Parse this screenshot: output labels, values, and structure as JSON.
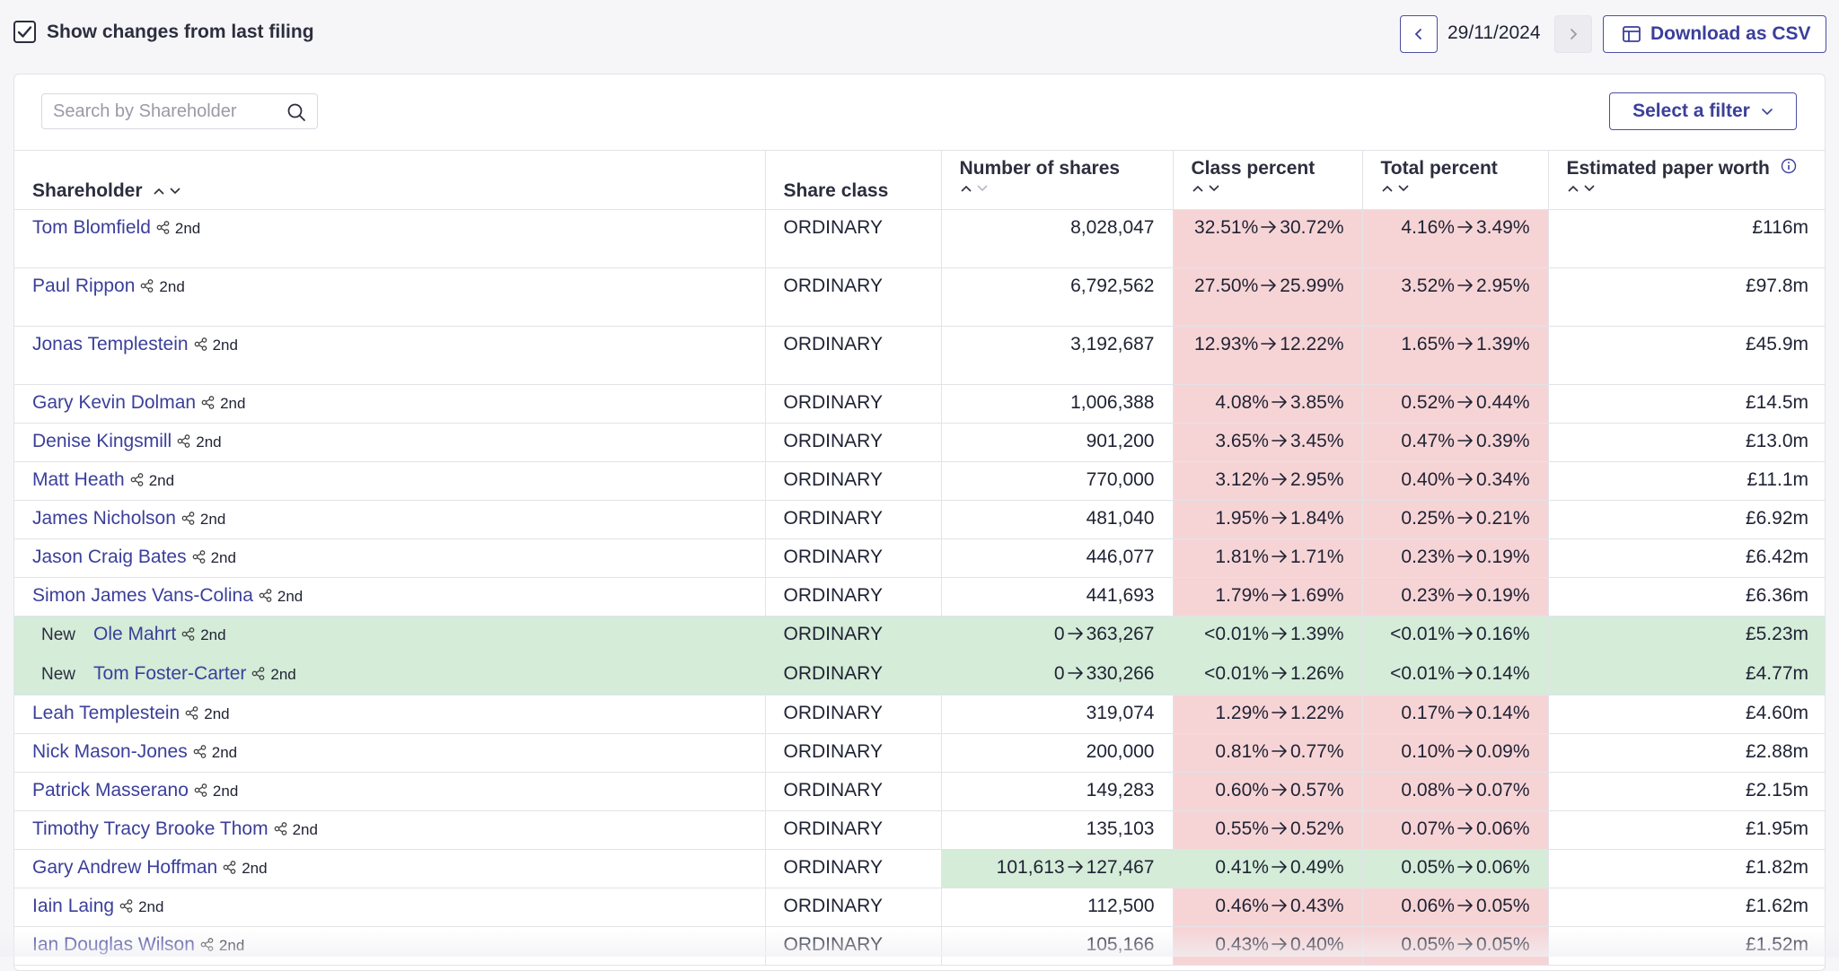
{
  "toolbar": {
    "show_changes_label": "Show changes from last filing",
    "show_changes_checked": true,
    "date": "29/11/2024",
    "download_label": "Download as CSV"
  },
  "filters": {
    "search_placeholder": "Search by Shareholder",
    "select_filter_label": "Select a filter"
  },
  "columns": {
    "shareholder": "Shareholder",
    "share_class": "Share class",
    "number_of_shares": "Number of shares",
    "class_percent": "Class percent",
    "total_percent": "Total percent",
    "paper_worth": "Estimated paper worth"
  },
  "colors": {
    "accent": "#3b3f9a",
    "decrease_bg": "#f6d4d6",
    "increase_bg": "#d4ecd8"
  },
  "rows": [
    {
      "name": "Tom Blomfield",
      "degree": "2nd",
      "is_new": false,
      "share_class": "ORDINARY",
      "shares_from": "",
      "shares": "8,028,047",
      "class_from": "32.51%",
      "class_to": "30.72%",
      "total_from": "4.16%",
      "total_to": "3.49%",
      "worth": "£116m"
    },
    {
      "name": "Paul Rippon",
      "degree": "2nd",
      "is_new": false,
      "share_class": "ORDINARY",
      "shares_from": "",
      "shares": "6,792,562",
      "class_from": "27.50%",
      "class_to": "25.99%",
      "total_from": "3.52%",
      "total_to": "2.95%",
      "worth": "£97.8m"
    },
    {
      "name": "Jonas Templestein",
      "degree": "2nd",
      "is_new": false,
      "share_class": "ORDINARY",
      "shares_from": "",
      "shares": "3,192,687",
      "class_from": "12.93%",
      "class_to": "12.22%",
      "total_from": "1.65%",
      "total_to": "1.39%",
      "worth": "£45.9m"
    },
    {
      "name": "Gary Kevin Dolman",
      "degree": "2nd",
      "is_new": false,
      "share_class": "ORDINARY",
      "shares_from": "",
      "shares": "1,006,388",
      "class_from": "4.08%",
      "class_to": "3.85%",
      "total_from": "0.52%",
      "total_to": "0.44%",
      "worth": "£14.5m"
    },
    {
      "name": "Denise Kingsmill",
      "degree": "2nd",
      "is_new": false,
      "share_class": "ORDINARY",
      "shares_from": "",
      "shares": "901,200",
      "class_from": "3.65%",
      "class_to": "3.45%",
      "total_from": "0.47%",
      "total_to": "0.39%",
      "worth": "£13.0m"
    },
    {
      "name": "Matt Heath",
      "degree": "2nd",
      "is_new": false,
      "share_class": "ORDINARY",
      "shares_from": "",
      "shares": "770,000",
      "class_from": "3.12%",
      "class_to": "2.95%",
      "total_from": "0.40%",
      "total_to": "0.34%",
      "worth": "£11.1m"
    },
    {
      "name": "James Nicholson",
      "degree": "2nd",
      "is_new": false,
      "share_class": "ORDINARY",
      "shares_from": "",
      "shares": "481,040",
      "class_from": "1.95%",
      "class_to": "1.84%",
      "total_from": "0.25%",
      "total_to": "0.21%",
      "worth": "£6.92m"
    },
    {
      "name": "Jason Craig Bates",
      "degree": "2nd",
      "is_new": false,
      "share_class": "ORDINARY",
      "shares_from": "",
      "shares": "446,077",
      "class_from": "1.81%",
      "class_to": "1.71%",
      "total_from": "0.23%",
      "total_to": "0.19%",
      "worth": "£6.42m"
    },
    {
      "name": "Simon James Vans-Colina",
      "degree": "2nd",
      "is_new": false,
      "share_class": "ORDINARY",
      "shares_from": "",
      "shares": "441,693",
      "class_from": "1.79%",
      "class_to": "1.69%",
      "total_from": "0.23%",
      "total_to": "0.19%",
      "worth": "£6.36m"
    },
    {
      "name": "Ole Mahrt",
      "degree": "2nd",
      "is_new": true,
      "new_label": "New",
      "share_class": "ORDINARY",
      "shares_from": "0",
      "shares": "363,267",
      "class_from": "<0.01%",
      "class_to": "1.39%",
      "total_from": "<0.01%",
      "total_to": "0.16%",
      "worth": "£5.23m"
    },
    {
      "name": "Tom Foster-Carter",
      "degree": "2nd",
      "is_new": true,
      "new_label": "New",
      "share_class": "ORDINARY",
      "shares_from": "0",
      "shares": "330,266",
      "class_from": "<0.01%",
      "class_to": "1.26%",
      "total_from": "<0.01%",
      "total_to": "0.14%",
      "worth": "£4.77m"
    },
    {
      "name": "Leah Templestein",
      "degree": "2nd",
      "is_new": false,
      "share_class": "ORDINARY",
      "shares_from": "",
      "shares": "319,074",
      "class_from": "1.29%",
      "class_to": "1.22%",
      "total_from": "0.17%",
      "total_to": "0.14%",
      "worth": "£4.60m"
    },
    {
      "name": "Nick Mason-Jones",
      "degree": "2nd",
      "is_new": false,
      "share_class": "ORDINARY",
      "shares_from": "",
      "shares": "200,000",
      "class_from": "0.81%",
      "class_to": "0.77%",
      "total_from": "0.10%",
      "total_to": "0.09%",
      "worth": "£2.88m"
    },
    {
      "name": "Patrick Masserano",
      "degree": "2nd",
      "is_new": false,
      "share_class": "ORDINARY",
      "shares_from": "",
      "shares": "149,283",
      "class_from": "0.60%",
      "class_to": "0.57%",
      "total_from": "0.08%",
      "total_to": "0.07%",
      "worth": "£2.15m"
    },
    {
      "name": "Timothy Tracy Brooke Thom",
      "degree": "2nd",
      "is_new": false,
      "share_class": "ORDINARY",
      "shares_from": "",
      "shares": "135,103",
      "class_from": "0.55%",
      "class_to": "0.52%",
      "total_from": "0.07%",
      "total_to": "0.06%",
      "worth": "£1.95m"
    },
    {
      "name": "Gary Andrew Hoffman",
      "degree": "2nd",
      "is_new": false,
      "share_class": "ORDINARY",
      "shares_from": "101,613",
      "shares": "127,467",
      "class_from": "0.41%",
      "class_to": "0.49%",
      "total_from": "0.05%",
      "total_to": "0.06%",
      "worth": "£1.82m"
    },
    {
      "name": "Iain Laing",
      "degree": "2nd",
      "is_new": false,
      "share_class": "ORDINARY",
      "shares_from": "",
      "shares": "112,500",
      "class_from": "0.46%",
      "class_to": "0.43%",
      "total_from": "0.06%",
      "total_to": "0.05%",
      "worth": "£1.62m"
    },
    {
      "name": "Ian Douglas Wilson",
      "degree": "2nd",
      "is_new": false,
      "share_class": "ORDINARY",
      "shares_from": "",
      "shares": "105,166",
      "class_from": "0.43%",
      "class_to": "0.40%",
      "total_from": "0.05%",
      "total_to": "0.05%",
      "worth": "£1.52m"
    }
  ]
}
